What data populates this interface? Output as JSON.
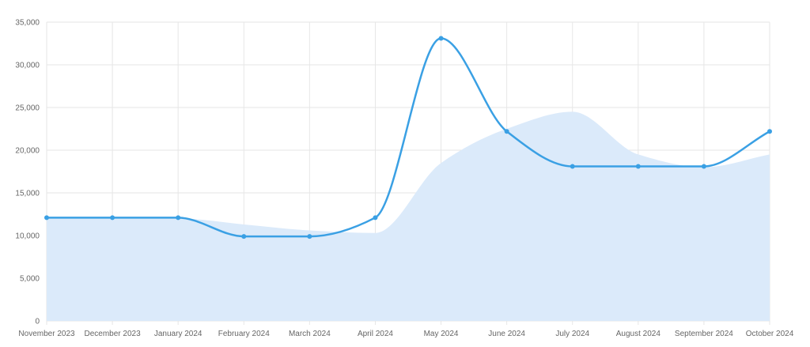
{
  "chart_data": {
    "type": "line",
    "title": "",
    "xlabel": "",
    "ylabel": "",
    "ylim": [
      0,
      35000
    ],
    "yticks": [
      0,
      5000,
      10000,
      15000,
      20000,
      25000,
      30000,
      35000
    ],
    "ytick_labels": [
      "0",
      "5,000",
      "10,000",
      "15,000",
      "20,000",
      "25,000",
      "30,000",
      "35,000"
    ],
    "categories": [
      "November 2023",
      "December 2023",
      "January 2024",
      "February 2024",
      "March 2024",
      "April 2024",
      "May 2024",
      "June 2024",
      "July 2024",
      "August 2024",
      "September 2024",
      "October 2024"
    ],
    "grid": true,
    "legend": "none",
    "series": [
      {
        "kind": "area",
        "color": "#dbeafa",
        "values": [
          12000,
          12000,
          12000,
          11300,
          10600,
          10300,
          18500,
          22500,
          24500,
          19500,
          18000,
          19500
        ]
      },
      {
        "kind": "line",
        "color": "#3aa0e4",
        "values": [
          12100,
          12100,
          12100,
          9900,
          9900,
          12100,
          33100,
          22200,
          18100,
          18100,
          18100,
          22200
        ]
      }
    ]
  }
}
